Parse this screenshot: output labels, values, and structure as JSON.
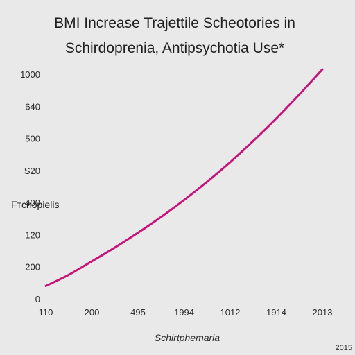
{
  "chart_data": {
    "type": "line",
    "title_lines": [
      "BMI Increase Trajettile Scheotories in",
      "Schirdoprenia, Antipsychotia Use*"
    ],
    "xlabel": "Schirtphemaria",
    "ylabel": "Fтcnopielis",
    "x_tick_labels": [
      "110",
      "200",
      "495",
      "1994",
      "1012",
      "1914",
      "2013"
    ],
    "y_tick_labels": [
      "0",
      "200",
      "120",
      "400",
      "S20",
      "500",
      "640",
      "1000"
    ],
    "y_ticks_normalized": [
      0,
      1,
      2,
      3,
      4,
      5,
      6,
      7
    ],
    "x_range_normalized": [
      0,
      6
    ],
    "ylim_normalized": [
      0,
      7
    ],
    "grid": false,
    "series": [
      {
        "color": "#c8147a",
        "points": [
          {
            "x": 0.0,
            "y": 0.4
          },
          {
            "x": 0.5,
            "y": 0.75
          },
          {
            "x": 1.0,
            "y": 1.17
          },
          {
            "x": 1.5,
            "y": 1.6
          },
          {
            "x": 2.0,
            "y": 2.06
          },
          {
            "x": 2.5,
            "y": 2.55
          },
          {
            "x": 3.0,
            "y": 3.08
          },
          {
            "x": 3.5,
            "y": 3.65
          },
          {
            "x": 4.0,
            "y": 4.26
          },
          {
            "x": 4.5,
            "y": 4.92
          },
          {
            "x": 5.0,
            "y": 5.62
          },
          {
            "x": 5.5,
            "y": 6.37
          },
          {
            "x": 6.0,
            "y": 7.15
          }
        ]
      }
    ]
  },
  "corner_label": "2015"
}
